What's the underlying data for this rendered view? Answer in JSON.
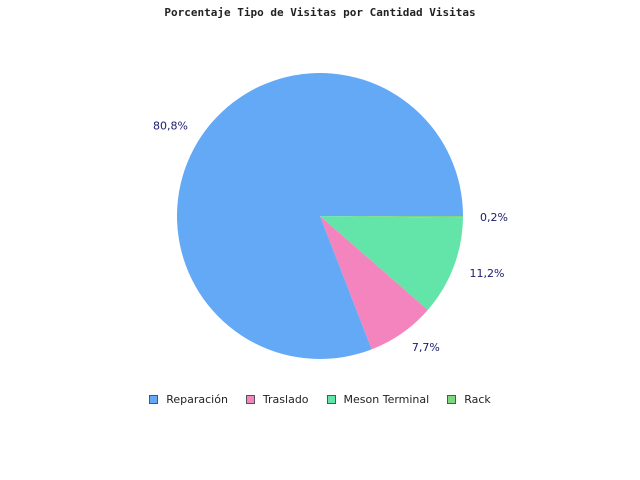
{
  "chart_data": {
    "type": "pie",
    "title": "Porcentaje Tipo de Visitas por Cantidad Visitas",
    "categories": [
      "Reparación",
      "Traslado",
      "Meson Terminal",
      "Rack"
    ],
    "values": [
      80.8,
      7.7,
      11.2,
      0.2
    ],
    "data_labels": [
      "80,8%",
      "7,7%",
      "11,2%",
      "0,2%"
    ],
    "colors": [
      "#63a9f5",
      "#f384be",
      "#63e5a9",
      "#7ed67e"
    ],
    "legend_position": "bottom"
  }
}
